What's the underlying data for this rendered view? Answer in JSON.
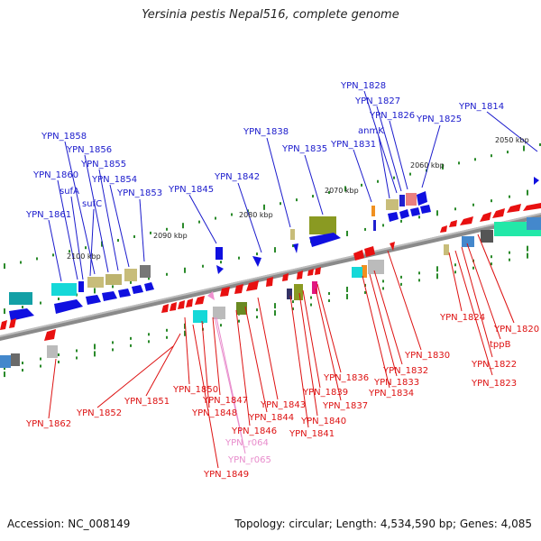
{
  "title": "Yersinia pestis Nepal516, complete genome",
  "footer": {
    "accession": "Accession: NC_008149",
    "topology": "Topology: circular; Length: 4,534,590 bp; Genes: 4,085"
  },
  "colors": {
    "label_top": "#1a1acc",
    "label_bottom": "#dd1111",
    "label_rna": "#e88ccc",
    "backbone": "#8a8a8a",
    "tick": "#2a8a2a"
  },
  "scale_labels": [
    "2050 kbp",
    "2060 kbp",
    "2070 kbp",
    "2080 kbp",
    "2090 kbp",
    "2100 kbp"
  ],
  "top_labels": [
    "YPN_1814",
    "YPN_1825",
    "YPN_1826",
    "YPN_1827",
    "YPN_1828",
    "anmK",
    "YPN_1831",
    "YPN_1835",
    "YPN_1838",
    "YPN_1842",
    "YPN_1845",
    "YPN_1853",
    "YPN_1854",
    "YPN_1855",
    "YPN_1856",
    "YPN_1858",
    "YPN_1860",
    "sufA",
    "sufC",
    "YPN_1861"
  ],
  "bottom_labels": [
    "YPN_1820",
    "tppB",
    "YPN_1822",
    "YPN_1823",
    "YPN_1824",
    "YPN_1830",
    "YPN_1832",
    "YPN_1833",
    "YPN_1834",
    "YPN_1836",
    "YPN_1837",
    "YPN_1839",
    "YPN_1840",
    "YPN_1841",
    "YPN_1843",
    "YPN_1844",
    "YPN_1846",
    "YPN_1847",
    "YPN_1848",
    "YPN_1849",
    "YPN_1850",
    "YPN_1851",
    "YPN_1852",
    "YPN_1862"
  ],
  "rna_labels": [
    "YPN_r064",
    "YPN_r065"
  ]
}
